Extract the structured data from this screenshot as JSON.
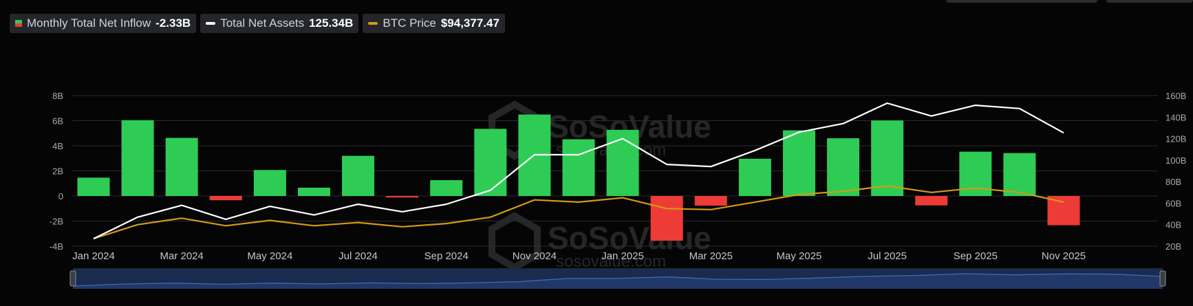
{
  "legend": {
    "inflow_label": "Monthly Total Net Inflow",
    "inflow_value": "-2.33B",
    "assets_label": "Total Net Assets",
    "assets_value": "125.34B",
    "btc_label": "BTC Price",
    "btc_value": "$94,377.47"
  },
  "watermark": {
    "brand": "SoSoValue",
    "url": "sosovalue.com"
  },
  "colors": {
    "positive": "#2ecc55",
    "negative": "#ee3b36",
    "assets_line": "#ffffff",
    "btc_line": "#d49a14",
    "grid": "#2a2c30",
    "navigator": "#1a2b4d",
    "navigator_line": "#3e6ab8"
  },
  "chart_data": {
    "type": "bar",
    "months": [
      "Jan 2024",
      "Feb 2024",
      "Mar 2024",
      "Apr 2024",
      "May 2024",
      "Jun 2024",
      "Jul 2024",
      "Aug 2024",
      "Sep 2024",
      "Oct 2024",
      "Nov 2024",
      "Dec 2024",
      "Jan 2025",
      "Feb 2025",
      "Mar 2025",
      "Apr 2025",
      "May 2025",
      "Jun 2025",
      "Jul 2025",
      "Aug 2025",
      "Sep 2025",
      "Oct 2025",
      "Nov 2025"
    ],
    "x_tick_labels": [
      "Jan 2024",
      "Mar 2024",
      "May 2024",
      "Jul 2024",
      "Sep 2024",
      "Nov 2024",
      "Jan 2025",
      "Mar 2025",
      "May 2025",
      "Jul 2025",
      "Sep 2025",
      "Nov 2025"
    ],
    "series": [
      {
        "name": "Monthly Total Net Inflow",
        "type": "bar",
        "axis": "left",
        "unit": "B",
        "values": [
          1.46,
          6.04,
          4.63,
          -0.34,
          2.07,
          0.66,
          3.2,
          -0.12,
          1.26,
          5.35,
          6.49,
          4.52,
          5.27,
          -3.56,
          -0.77,
          2.97,
          5.23,
          4.6,
          6.02,
          -0.75,
          3.53,
          3.42,
          -2.33
        ]
      },
      {
        "name": "Total Net Assets",
        "type": "line",
        "axis": "right",
        "unit": "B",
        "values": [
          27,
          47,
          58,
          45,
          57,
          49,
          59,
          52,
          59,
          72,
          105,
          105,
          120,
          96,
          94,
          109,
          126,
          134,
          153,
          141,
          151,
          148,
          125.34
        ]
      },
      {
        "name": "BTC Price",
        "type": "line",
        "axis": "right",
        "unit": "B-scaled",
        "values": [
          27,
          40,
          46,
          39,
          44,
          39,
          42,
          38,
          41,
          47,
          63,
          61,
          65,
          55,
          54,
          61,
          68,
          71,
          76,
          70,
          74,
          70,
          61
        ]
      }
    ],
    "y_left": {
      "ticks": [
        "-4B",
        "-2B",
        "0",
        "2B",
        "4B",
        "6B",
        "8B"
      ],
      "range": [
        -4,
        8
      ]
    },
    "y_right": {
      "ticks": [
        "20B",
        "40B",
        "60B",
        "80B",
        "100B",
        "120B",
        "140B",
        "160B"
      ],
      "range": [
        20,
        160
      ]
    },
    "grid": true,
    "legend_position": "top-left"
  }
}
